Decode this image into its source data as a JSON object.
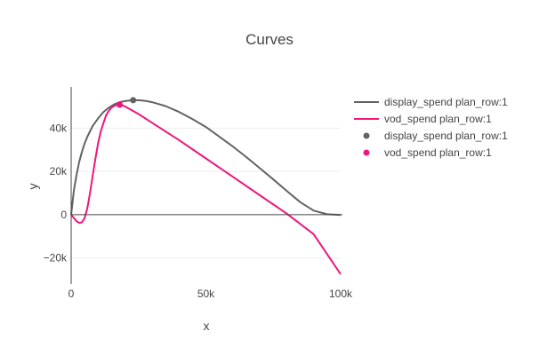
{
  "chart_data": {
    "type": "line",
    "title": "Curves",
    "xlabel": "x",
    "ylabel": "y",
    "xlim": [
      0,
      100000
    ],
    "ylim": [
      -32000,
      59000
    ],
    "x_ticks": [
      {
        "value": 0,
        "label": "0"
      },
      {
        "value": 50000,
        "label": "50k"
      },
      {
        "value": 100000,
        "label": "100k"
      }
    ],
    "y_ticks": [
      {
        "value": -20000,
        "label": "−20k"
      },
      {
        "value": 0,
        "label": "0"
      },
      {
        "value": 20000,
        "label": "20k"
      },
      {
        "value": 40000,
        "label": "40k"
      }
    ],
    "grid": true,
    "legend_position": "right",
    "series": [
      {
        "name": "display_spend plan_row:1",
        "mode": "line",
        "color": "#636363",
        "x": [
          0,
          1000,
          2000,
          3000,
          4000,
          5000,
          6000,
          7000,
          8000,
          10000,
          12000,
          14000,
          16000,
          18000,
          20000,
          22000,
          24000,
          26000,
          28000,
          30000,
          35000,
          40000,
          45000,
          50000,
          55000,
          60000,
          65000,
          70000,
          75000,
          80000,
          85000,
          90000,
          95000,
          100000
        ],
        "y": [
          0,
          11000,
          18500,
          24500,
          29000,
          33000,
          36000,
          38500,
          41000,
          44500,
          47500,
          49500,
          51000,
          52000,
          52500,
          52800,
          52900,
          52800,
          52500,
          52000,
          50200,
          47500,
          44200,
          40500,
          36000,
          31500,
          26600,
          21500,
          16300,
          11000,
          5800,
          1900,
          200,
          -100
        ]
      },
      {
        "name": "vod_spend plan_row:1",
        "mode": "line",
        "color": "#f0157c",
        "x": [
          0,
          1000,
          2000,
          3000,
          4000,
          5000,
          6000,
          7000,
          8000,
          9000,
          10000,
          11000,
          12000,
          13000,
          14000,
          15000,
          16000,
          17000,
          18000,
          19000,
          20000,
          25000,
          30000,
          40000,
          50000,
          60000,
          70000,
          80000,
          90000,
          100000
        ],
        "y": [
          0,
          -1500,
          -3000,
          -3800,
          -3500,
          -1500,
          3000,
          10000,
          18000,
          26000,
          33000,
          38500,
          42500,
          46000,
          48000,
          49500,
          50300,
          50700,
          50800,
          50500,
          50000,
          46500,
          42500,
          34500,
          26000,
          17500,
          9000,
          500,
          -9000,
          -27500
        ]
      },
      {
        "name": "display_spend plan_row:1",
        "mode": "markers",
        "color": "#636363",
        "x": [
          23000
        ],
        "y": [
          52900
        ]
      },
      {
        "name": "vod_spend plan_row:1",
        "mode": "markers",
        "color": "#f0157c",
        "x": [
          18000
        ],
        "y": [
          50800
        ]
      }
    ]
  }
}
